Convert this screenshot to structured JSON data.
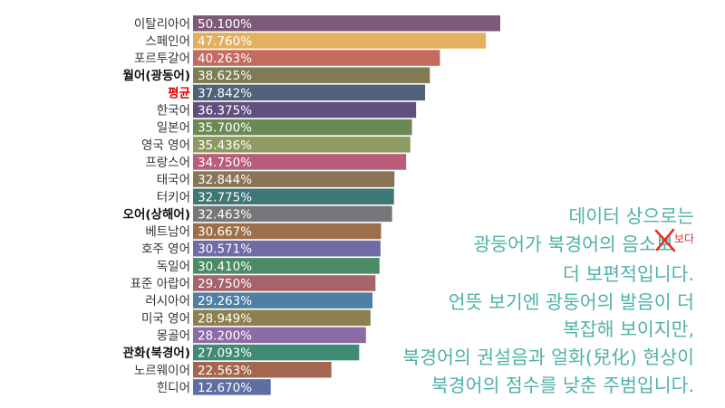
{
  "chart_data": {
    "type": "bar",
    "orientation": "horizontal",
    "categories": [
      "이탈리아어",
      "스페인어",
      "포르투갈어",
      "월어(광동어)",
      "평균",
      "한국어",
      "일본어",
      "영국 영어",
      "프랑스어",
      "태국어",
      "터키어",
      "오어(상해어)",
      "베트남어",
      "호주 영어",
      "독일어",
      "표준 아랍어",
      "러시아어",
      "미국 영어",
      "몽골어",
      "관화(북경어)",
      "노르웨이어",
      "힌디어"
    ],
    "values": [
      50.1,
      47.76,
      40.263,
      38.625,
      37.842,
      36.375,
      35.7,
      35.436,
      34.75,
      32.844,
      32.775,
      32.463,
      30.667,
      30.571,
      30.41,
      29.75,
      29.263,
      28.949,
      28.2,
      27.093,
      22.563,
      12.67
    ],
    "value_labels": [
      "50.100%",
      "47.760%",
      "40.263%",
      "38.625%",
      "37.842%",
      "36.375%",
      "35.700%",
      "35.436%",
      "34.750%",
      "32.844%",
      "32.775%",
      "32.463%",
      "30.667%",
      "30.571%",
      "30.410%",
      "29.750%",
      "29.263%",
      "28.949%",
      "28.200%",
      "27.093%",
      "22.563%",
      "12.670%"
    ],
    "bar_colors": [
      "#7d5a78",
      "#e3b15e",
      "#c46a5e",
      "#7f7b52",
      "#4f6278",
      "#5f4f7d",
      "#6a8a55",
      "#8f9a62",
      "#b85e7a",
      "#8b7455",
      "#3f7676",
      "#76777a",
      "#9c6f4a",
      "#6f6ba5",
      "#4a8a64",
      "#a5646a",
      "#4f7fa2",
      "#8d7f4f",
      "#8e6ba4",
      "#3f8a73",
      "#a46650",
      "#5f6ea0"
    ],
    "highlight_categories": {
      "월어(광동어)": {
        "bold": true,
        "color": "#111111"
      },
      "평균": {
        "bold": true,
        "color": "#e00000"
      },
      "오어(상해어)": {
        "bold": true,
        "color": "#111111"
      },
      "관화(북경어)": {
        "bold": true,
        "color": "#111111"
      }
    },
    "title": "",
    "xlabel": "",
    "ylabel": "",
    "xlim": [
      0,
      50.1
    ],
    "grid": false,
    "legend": "none"
  },
  "caption": {
    "line1": "데이터 상으로는",
    "line2_prefix": "광둥어가 북경어의 음소",
    "line2_struck": "보",
    "line2_insert": "보다",
    "line3": "더 보편적입니다.",
    "line4": "언뜻 보기엔 광둥어의 발음이 더",
    "line5": "복잡해 보이지만,",
    "line6": "북경어의 권설음과 얼화(兒化) 현상이",
    "line7": "북경어의 점수를 낮춘 주범입니다."
  },
  "colors": {
    "caption": "#4fb2a7",
    "annotation_red": "#e2302c",
    "label_text": "#333333",
    "value_text": "#ffffff"
  }
}
